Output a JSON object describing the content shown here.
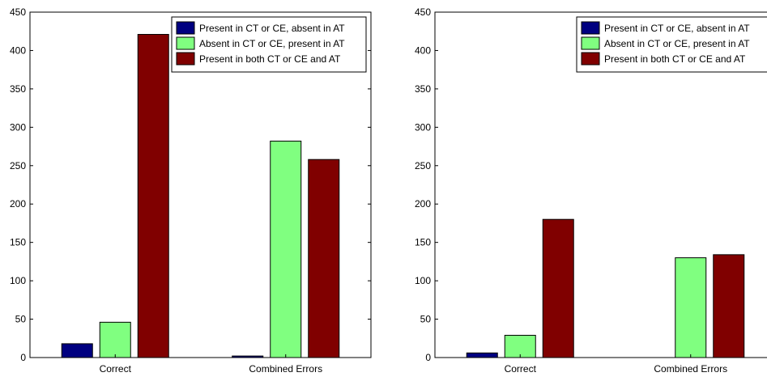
{
  "chart_data": [
    {
      "type": "bar",
      "categories": [
        "Correct",
        "Combined Errors"
      ],
      "ylim": [
        0,
        450
      ],
      "yticks": [
        0,
        50,
        100,
        150,
        200,
        250,
        300,
        350,
        400,
        450
      ],
      "legend_position": "top-right",
      "series": [
        {
          "name": "Present in CT or CE, absent in AT",
          "color": "#000080",
          "values": [
            18,
            2
          ]
        },
        {
          "name": "Absent in CT or CE, present in AT",
          "color": "#80ff80",
          "values": [
            46,
            282
          ]
        },
        {
          "name": "Present in both CT or CE and AT",
          "color": "#800000",
          "values": [
            421,
            258
          ]
        }
      ]
    },
    {
      "type": "bar",
      "categories": [
        "Correct",
        "Combined Errors"
      ],
      "ylim": [
        0,
        450
      ],
      "yticks": [
        0,
        50,
        100,
        150,
        200,
        250,
        300,
        350,
        400,
        450
      ],
      "legend_position": "top-right",
      "series": [
        {
          "name": "Present in CT or CE, absent in AT",
          "color": "#000080",
          "values": [
            6,
            0
          ]
        },
        {
          "name": "Absent in CT or CE, present in AT",
          "color": "#80ff80",
          "values": [
            29,
            130
          ]
        },
        {
          "name": "Present in both CT or CE and AT",
          "color": "#800000",
          "values": [
            180,
            134
          ]
        }
      ]
    }
  ]
}
